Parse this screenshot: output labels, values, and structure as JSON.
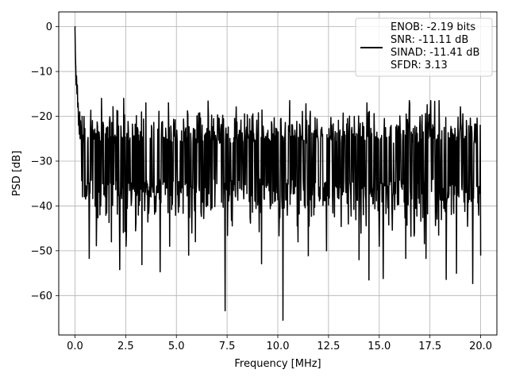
{
  "chart_data": {
    "type": "line",
    "title": "",
    "xlabel": "Frequency [MHz]",
    "ylabel": "PSD [dB]",
    "xlim": [
      -0.8,
      20.8
    ],
    "ylim": [
      -68.8,
      3.3
    ],
    "x_ticks": [
      0,
      2.5,
      5,
      7.5,
      10,
      12.5,
      15,
      17.5,
      20
    ],
    "x_tick_labels": [
      "0.0",
      "2.5",
      "5.0",
      "7.5",
      "10.0",
      "12.5",
      "15.0",
      "17.5",
      "20.0"
    ],
    "y_ticks": [
      0,
      -10,
      -20,
      -30,
      -40,
      -50,
      -60
    ],
    "y_tick_labels": [
      "0",
      "−10",
      "−20",
      "−30",
      "−40",
      "−50",
      "−60"
    ],
    "grid": true,
    "legend_position": "top-right",
    "series": [
      {
        "legend_lines": [
          "ENOB: -2.19 bits",
          "SNR: -11.11 dB",
          "SINAD: -11.41 dB",
          "SFDR: 3.13"
        ],
        "color": "#000000",
        "x_range": [
          0,
          20
        ],
        "num_points": 1025,
        "peak": {
          "x": 0,
          "y": 0
        },
        "noise_floor_mean": -30,
        "noise_upper_typical": -22,
        "noise_lower_typical": -40,
        "prominent_features": [
          {
            "x": 0.02,
            "y": 0
          },
          {
            "x": 0.05,
            "y": -9
          },
          {
            "x": 0.1,
            "y": -15
          },
          {
            "x": 0.2,
            "y": -20
          },
          {
            "x": 0.3,
            "y": -25
          },
          {
            "x": 0.7,
            "y": -51.7
          },
          {
            "x": 1.3,
            "y": -16
          },
          {
            "x": 1.8,
            "y": -48
          },
          {
            "x": 2.2,
            "y": -54.2
          },
          {
            "x": 2.4,
            "y": -16
          },
          {
            "x": 3.3,
            "y": -53.1
          },
          {
            "x": 3.5,
            "y": -17
          },
          {
            "x": 4.2,
            "y": -54.7
          },
          {
            "x": 4.6,
            "y": -17
          },
          {
            "x": 5.6,
            "y": -51
          },
          {
            "x": 7.4,
            "y": -63.4
          },
          {
            "x": 9.2,
            "y": -52.9
          },
          {
            "x": 10.25,
            "y": -65.5
          },
          {
            "x": 11.0,
            "y": -48
          },
          {
            "x": 11.5,
            "y": -51.1
          },
          {
            "x": 12.4,
            "y": -50
          },
          {
            "x": 14.0,
            "y": -52
          },
          {
            "x": 14.5,
            "y": -56.5
          },
          {
            "x": 14.4,
            "y": -17
          },
          {
            "x": 15.2,
            "y": -56.2
          },
          {
            "x": 16.3,
            "y": -51.7
          },
          {
            "x": 17.3,
            "y": -51.7
          },
          {
            "x": 18.3,
            "y": -56.4
          },
          {
            "x": 18.8,
            "y": -55
          },
          {
            "x": 19.0,
            "y": -17.9
          },
          {
            "x": 19.6,
            "y": -57.3
          },
          {
            "x": 20.0,
            "y": -51
          }
        ]
      }
    ]
  }
}
